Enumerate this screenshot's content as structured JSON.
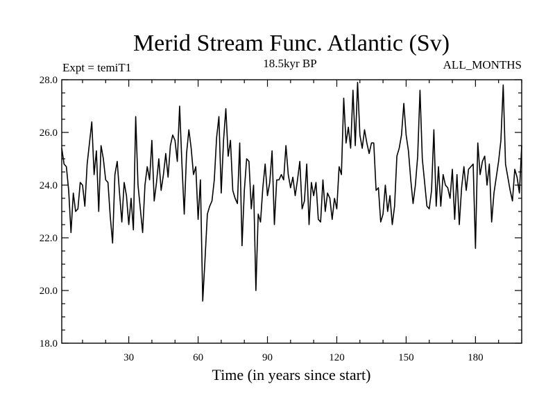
{
  "chart_data": {
    "type": "line",
    "title": "Merid Stream Func. Atlantic (Sv)",
    "subtitle_left": "Expt = temiT1",
    "subtitle_center": "18.5kyr BP",
    "subtitle_right": "ALL_MONTHS",
    "xlabel": "Time (in years since start)",
    "ylabel": "",
    "xlim": [
      1,
      200
    ],
    "ylim": [
      18.0,
      28.0
    ],
    "x_ticks": [
      30,
      60,
      90,
      120,
      150,
      180
    ],
    "y_ticks": [
      "18.0",
      "20.0",
      "22.0",
      "24.0",
      "26.0",
      "28.0"
    ],
    "series": [
      {
        "name": "Merid Stream Func. Atlantic",
        "color": "#000000",
        "x_start": 1,
        "x_step": 1,
        "values": [
          25.4,
          24.8,
          24.7,
          23.8,
          22.2,
          23.7,
          23.0,
          23.1,
          24.1,
          24.0,
          23.2,
          24.8,
          25.6,
          26.4,
          24.4,
          25.3,
          23.0,
          25.5,
          25.0,
          24.2,
          24.1,
          22.8,
          21.8,
          24.4,
          24.9,
          23.7,
          22.6,
          24.1,
          23.6,
          22.5,
          23.5,
          22.3,
          26.6,
          24.0,
          23.1,
          22.2,
          24.0,
          24.7,
          24.2,
          25.7,
          23.4,
          24.1,
          25.0,
          23.8,
          24.4,
          25.2,
          24.3,
          25.5,
          25.9,
          25.7,
          24.9,
          27.0,
          24.8,
          22.9,
          25.2,
          26.1,
          25.4,
          24.4,
          24.7,
          22.7,
          24.2,
          19.6,
          21.2,
          22.9,
          23.2,
          23.4,
          24.2,
          25.8,
          26.6,
          23.7,
          25.7,
          26.9,
          25.1,
          25.7,
          23.8,
          23.5,
          23.3,
          25.6,
          21.7,
          23.8,
          25.0,
          24.9,
          23.1,
          24.0,
          20.0,
          22.9,
          22.6,
          23.9,
          24.8,
          23.6,
          24.1,
          25.3,
          22.5,
          24.2,
          24.2,
          24.4,
          24.2,
          25.5,
          24.4,
          23.9,
          24.3,
          23.6,
          24.2,
          24.9,
          23.1,
          23.4,
          24.8,
          22.5,
          24.1,
          23.6,
          24.1,
          22.7,
          22.6,
          24.2,
          23.0,
          23.7,
          23.5,
          22.7,
          23.5,
          23.1,
          24.7,
          24.4,
          27.3,
          25.6,
          26.2,
          25.4,
          27.6,
          25.5,
          27.9,
          25.9,
          25.4,
          26.1,
          25.6,
          25.2,
          25.6,
          25.6,
          23.8,
          23.9,
          22.6,
          22.9,
          24.0,
          23.0,
          23.6,
          22.5,
          23.2,
          25.1,
          25.4,
          25.9,
          27.1,
          25.9,
          25.3,
          24.2,
          23.3,
          24.0,
          25.1,
          27.6,
          25.0,
          24.1,
          23.2,
          23.1,
          23.8,
          26.1,
          23.2,
          24.7,
          23.2,
          24.4,
          24.0,
          23.9,
          23.5,
          24.6,
          22.7,
          24.4,
          22.5,
          23.9,
          24.7,
          23.8,
          24.6,
          24.7,
          24.8,
          21.6,
          25.6,
          24.4,
          24.9,
          25.1,
          24.0,
          24.8,
          22.6,
          23.7,
          24.3,
          24.9,
          25.7,
          27.8,
          24.8,
          24.3,
          23.8,
          23.4,
          24.6,
          24.3,
          23.7,
          25.5
        ]
      }
    ]
  }
}
